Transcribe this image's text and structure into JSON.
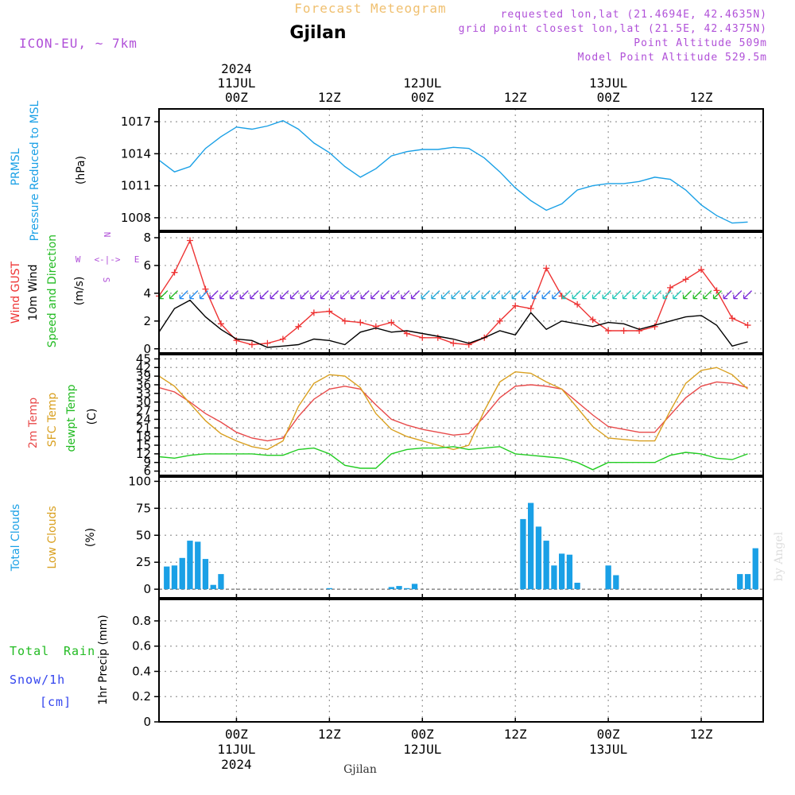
{
  "header": {
    "title": "Forecast Meteogram",
    "location": "Gjilan",
    "model": "ICON-EU, ~ 7km",
    "info_lines": [
      "requested lon,lat (21.4694E, 42.4635N)",
      "grid point closest lon,lat (21.5E, 42.4375N)",
      "Point Altitude 509m",
      "Model Point Altitude 529.5m"
    ],
    "footer_location": "Gjilan",
    "credit": "by Angel"
  },
  "colors": {
    "pressure": "#1aa0e6",
    "gust": "#ee3333",
    "wind": "#000000",
    "direction": "#22bb22",
    "t2m": "#e84a4a",
    "sfc": "#d9a020",
    "dewpt": "#22cc22",
    "total_clouds": "#1aa0e6",
    "low_clouds": "#d9a020",
    "rain": "#22bb22",
    "snow": "#3344ee",
    "info": "#b050d8",
    "title": "#f0c070",
    "grid": "#999999"
  },
  "time_axis": {
    "top": {
      "year": "2024",
      "ticks": [
        {
          "hour": 24,
          "label": "00Z",
          "date": "11JUL",
          "year": "2024"
        },
        {
          "hour": 36,
          "label": "12Z"
        },
        {
          "hour": 48,
          "label": "00Z",
          "date": "12JUL"
        },
        {
          "hour": 60,
          "label": "12Z"
        },
        {
          "hour": 72,
          "label": "00Z",
          "date": "13JUL"
        },
        {
          "hour": 84,
          "label": "12Z"
        }
      ]
    },
    "bottom": {
      "ticks": [
        {
          "hour": 24,
          "label": "00Z",
          "date": "11JUL",
          "year": "2024"
        },
        {
          "hour": 36,
          "label": "12Z"
        },
        {
          "hour": 48,
          "label": "00Z",
          "date": "12JUL"
        },
        {
          "hour": 60,
          "label": "12Z"
        },
        {
          "hour": 72,
          "label": "00Z",
          "date": "13JUL"
        },
        {
          "hour": 84,
          "label": "12Z"
        }
      ]
    }
  },
  "panels": {
    "pressure": {
      "labels": [
        "PRMSL",
        "Pressure Reduced to MSL",
        "(hPa)"
      ],
      "ticks": [
        "1008",
        "1011",
        "1014",
        "1017"
      ]
    },
    "wind": {
      "labels": [
        "Wind GUST",
        "10m Wind",
        "Speed and Direction",
        "(m/s)"
      ],
      "ticks": [
        "0",
        "2",
        "4",
        "6",
        "8"
      ],
      "compass": {
        "n": "N",
        "s": "S",
        "w": "W",
        "e": "E",
        "arrows": "<-|->"
      }
    },
    "temp": {
      "labels": [
        "2m Temp",
        "SFC Temp",
        "dewpt Temp",
        "(C)"
      ],
      "ticks": [
        "6",
        "9",
        "12",
        "15",
        "18",
        "21",
        "24",
        "27",
        "30",
        "33",
        "36",
        "39",
        "42",
        "45"
      ]
    },
    "clouds": {
      "labels": [
        "Total Clouds",
        "Low Clouds",
        "(%)"
      ],
      "ticks": [
        "0",
        "25",
        "50",
        "75",
        "100"
      ]
    },
    "precip": {
      "labels": [
        "Total",
        "Rain",
        "Snow/1h",
        "[cm]",
        "1hr Precip (mm)"
      ],
      "ticks": [
        "0",
        "0.2",
        "0.4",
        "0.6",
        "0.8"
      ]
    }
  },
  "chart_data": [
    {
      "type": "line",
      "name": "PRMSL",
      "ylabel": "(hPa)",
      "ylim": [
        1006.8,
        1018.2
      ],
      "x": [
        14,
        16,
        18,
        20,
        22,
        24,
        26,
        28,
        30,
        32,
        34,
        36,
        38,
        40,
        42,
        44,
        46,
        48,
        50,
        52,
        54,
        56,
        58,
        60,
        62,
        64,
        66,
        68,
        70,
        72,
        74,
        76,
        78,
        80,
        82,
        84,
        86,
        88,
        90
      ],
      "values": [
        1013.4,
        1012.3,
        1012.8,
        1014.5,
        1015.6,
        1016.5,
        1016.3,
        1016.6,
        1017.1,
        1016.3,
        1015.0,
        1014.1,
        1012.8,
        1011.8,
        1012.6,
        1013.8,
        1014.2,
        1014.4,
        1014.4,
        1014.6,
        1014.5,
        1013.6,
        1012.3,
        1010.8,
        1009.6,
        1008.7,
        1009.3,
        1010.6,
        1011.0,
        1011.2,
        1011.2,
        1011.4,
        1011.8,
        1011.6,
        1010.6,
        1009.2,
        1008.2,
        1007.5,
        1007.6
      ],
      "grid": true
    },
    {
      "type": "line",
      "name": "Wind",
      "ylabel": "(m/s)",
      "ylim": [
        -0.3,
        8.4
      ],
      "x": [
        14,
        16,
        18,
        20,
        22,
        24,
        26,
        28,
        30,
        32,
        34,
        36,
        38,
        40,
        42,
        44,
        46,
        48,
        50,
        52,
        54,
        56,
        58,
        60,
        62,
        64,
        66,
        68,
        70,
        72,
        74,
        76,
        78,
        80,
        82,
        84,
        86,
        88,
        90
      ],
      "series": [
        {
          "name": "Wind GUST",
          "values": [
            3.8,
            5.5,
            7.8,
            4.3,
            1.8,
            0.6,
            0.3,
            0.4,
            0.7,
            1.6,
            2.6,
            2.7,
            2.0,
            1.9,
            1.6,
            1.9,
            1.1,
            0.8,
            0.8,
            0.4,
            0.3,
            0.8,
            2.0,
            3.1,
            2.9,
            5.8,
            3.8,
            3.2,
            2.1,
            1.3,
            1.3,
            1.3,
            1.6,
            4.4,
            5.0,
            5.7,
            4.2,
            2.2,
            1.7
          ]
        },
        {
          "name": "10m Wind",
          "values": [
            1.2,
            2.9,
            3.5,
            2.3,
            1.4,
            0.7,
            0.6,
            0.1,
            0.2,
            0.3,
            0.7,
            0.6,
            0.3,
            1.2,
            1.5,
            1.2,
            1.3,
            1.1,
            0.9,
            0.7,
            0.4,
            0.8,
            1.3,
            1.0,
            2.6,
            1.4,
            2.0,
            1.8,
            1.6,
            1.9,
            1.8,
            1.4,
            1.7,
            2.0,
            2.3,
            2.4,
            1.7,
            0.2,
            0.5
          ]
        }
      ],
      "grid": true
    },
    {
      "type": "line",
      "name": "Temperature",
      "ylabel": "(C)",
      "ylim": [
        4.5,
        46.5
      ],
      "x": [
        14,
        16,
        18,
        20,
        22,
        24,
        26,
        28,
        30,
        32,
        34,
        36,
        38,
        40,
        42,
        44,
        46,
        48,
        50,
        52,
        54,
        56,
        58,
        60,
        62,
        64,
        66,
        68,
        70,
        72,
        74,
        76,
        78,
        80,
        82,
        84,
        86,
        88,
        90
      ],
      "series": [
        {
          "name": "2m Temp",
          "values": [
            35.0,
            33.5,
            30.0,
            26.0,
            23.0,
            19.5,
            17.5,
            16.5,
            17.5,
            25.0,
            31.0,
            34.5,
            35.5,
            34.5,
            29.0,
            24.0,
            22.0,
            20.5,
            19.5,
            18.5,
            19.0,
            25.0,
            31.5,
            35.5,
            36.0,
            35.5,
            34.5,
            30.0,
            25.5,
            21.5,
            20.5,
            19.5,
            19.5,
            25.5,
            31.5,
            35.5,
            37.0,
            36.5,
            35.0
          ]
        },
        {
          "name": "SFC Temp",
          "values": [
            39.0,
            35.5,
            29.5,
            23.5,
            19.0,
            16.5,
            14.5,
            13.5,
            16.5,
            28.5,
            36.5,
            39.5,
            39.0,
            35.0,
            26.0,
            20.5,
            18.0,
            16.5,
            15.0,
            13.5,
            15.0,
            27.0,
            37.0,
            40.5,
            40.0,
            37.0,
            34.5,
            28.0,
            21.5,
            17.5,
            17.0,
            16.5,
            16.5,
            27.0,
            36.5,
            41.0,
            42.0,
            39.5,
            34.5
          ]
        },
        {
          "name": "dewpt Temp",
          "values": [
            11.0,
            10.5,
            11.5,
            12.0,
            12.0,
            12.0,
            12.0,
            11.5,
            11.5,
            13.5,
            14.0,
            12.0,
            8.0,
            7.0,
            7.0,
            12.0,
            13.5,
            14.0,
            14.0,
            14.5,
            13.5,
            14.0,
            14.5,
            12.0,
            11.5,
            11.0,
            10.5,
            9.0,
            6.5,
            9.0,
            9.0,
            9.0,
            9.0,
            11.5,
            12.5,
            12.0,
            10.5,
            10.0,
            12.0
          ]
        }
      ],
      "grid": true
    },
    {
      "type": "bar",
      "name": "Clouds",
      "ylabel": "(%)",
      "ylim": [
        -8,
        104
      ],
      "x": [
        15,
        16,
        17,
        18,
        19,
        20,
        21,
        22,
        36,
        44,
        45,
        46,
        47,
        61,
        62,
        63,
        64,
        65,
        66,
        67,
        68,
        69,
        72,
        73,
        89,
        90,
        91
      ],
      "series": [
        {
          "name": "Total Clouds",
          "values": [
            21,
            22,
            29,
            45,
            44,
            28,
            4,
            14,
            1,
            2,
            3,
            1,
            5,
            65,
            80,
            58,
            45,
            22,
            33,
            32,
            6,
            0,
            22,
            13,
            14,
            14,
            38
          ]
        },
        {
          "name": "Low Clouds",
          "values": [
            0,
            0,
            0,
            0,
            0,
            0,
            0,
            0,
            0,
            0,
            0,
            0,
            0,
            0,
            0,
            0,
            0,
            0,
            0,
            0,
            0,
            0,
            0,
            0,
            0,
            0,
            0
          ]
        }
      ],
      "grid": true
    },
    {
      "type": "bar",
      "name": "1hr Precip",
      "ylabel": "1hr Precip (mm)",
      "ylim": [
        0,
        0.97
      ],
      "series": [
        {
          "name": "Total Rain",
          "values": []
        },
        {
          "name": "Snow/1h",
          "values": []
        }
      ],
      "grid": true
    }
  ]
}
